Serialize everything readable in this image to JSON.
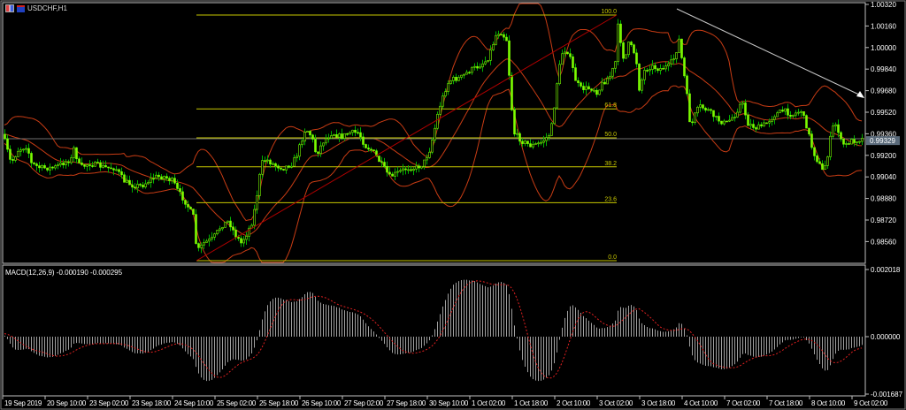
{
  "header": {
    "title": "USDCHF,H1"
  },
  "colors": {
    "background": "#000000",
    "bull_candle": "#7CFC00",
    "bear_candle": "#00B000",
    "bollinger": "#C83C14",
    "fibo": "#C8C800",
    "trendline": "#B00000",
    "arrow_line": "#C8C8C8",
    "macd_hist": "#A0A0A0",
    "macd_signal": "#E02020",
    "grid_axis": "#C0C0C0"
  },
  "price_axis": {
    "ticks": [
      "1.00320",
      "1.00160",
      "1.00000",
      "0.99840",
      "0.99680",
      "0.99520",
      "0.99360",
      "0.99200",
      "0.99040",
      "0.98880",
      "0.98720",
      "0.98560"
    ],
    "current_price": "0.99329"
  },
  "fibonacci": {
    "levels": [
      "100.0",
      "61.8",
      "50.0",
      "38.2",
      "23.6",
      "0.0"
    ]
  },
  "macd": {
    "label": "MACD(12,26,9) -0.000190 -0.000295",
    "ticks": [
      "0.002018",
      "0.000000",
      "-0.001687"
    ]
  },
  "time_axis": {
    "labels": [
      "19 Sep 2019",
      "20 Sep 10:00",
      "23 Sep 02:00",
      "23 Sep 18:00",
      "24 Sep 10:00",
      "25 Sep 02:00",
      "25 Sep 18:00",
      "26 Sep 10:00",
      "27 Sep 02:00",
      "27 Sep 18:00",
      "30 Sep 10:00",
      "1 Oct 02:00",
      "1 Oct 18:00",
      "2 Oct 10:00",
      "3 Oct 02:00",
      "3 Oct 18:00",
      "4 Oct 10:00",
      "7 Oct 02:00",
      "7 Oct 18:00",
      "8 Oct 10:00",
      "9 Oct 02:00"
    ]
  }
}
